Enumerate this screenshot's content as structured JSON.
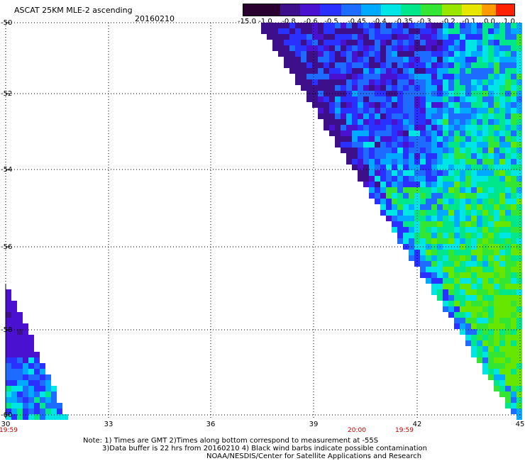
{
  "header": {
    "title": "ASCAT 25KM MLE-2 ascending",
    "date": "20160210"
  },
  "colorbar": {
    "labels": [
      "-15.0",
      "-1.0",
      "-0.8",
      "-0.6",
      "-0.5",
      "-0.45",
      "-0.4",
      "-0.35",
      "-0.3",
      "-0.2",
      "-0.1",
      "0.0",
      "1.0"
    ],
    "colors": [
      "#2a0030",
      "#3d0f8a",
      "#4b11d0",
      "#2a30ff",
      "#1e6cff",
      "#00aaff",
      "#00e6e6",
      "#00e68a",
      "#33e633",
      "#99e600",
      "#e6e600",
      "#ff9900",
      "#ff2200"
    ]
  },
  "axes": {
    "lat_labels": [
      "-50",
      "-52",
      "-54",
      "-56",
      "-58",
      "-60"
    ],
    "lon_labels": [
      "30",
      "33",
      "36",
      "39",
      "42",
      "45"
    ]
  },
  "time_labels": [
    "19:59",
    "20:00",
    "19:59"
  ],
  "notes": [
    "Note: 1) Times are GMT 2)Times along bottom correspond to measurement at -55S",
    "3)Data buffer is 22 hrs from 20160210 4) Black wind barbs indicate possible contamination",
    "NOAA/NESDIS/Center for Satellite Applications and Research"
  ]
}
